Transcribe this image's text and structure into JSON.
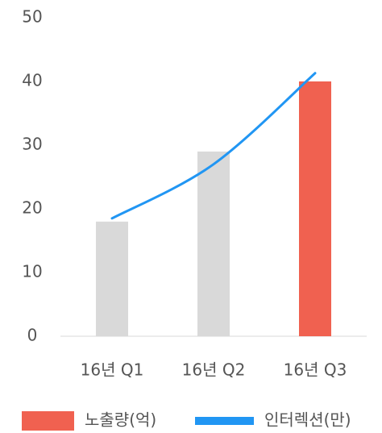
{
  "chart_data": {
    "type": "bar",
    "categories": [
      "16년 Q1",
      "16년 Q2",
      "16년 Q3"
    ],
    "series": [
      {
        "name": "노출량(억)",
        "type": "bar",
        "color": "#f06150",
        "colors": [
          "#d9d9d9",
          "#d9d9d9",
          "#f06150"
        ],
        "values": [
          18,
          29,
          40
        ]
      },
      {
        "name": "인터렉션(만)",
        "type": "line",
        "color": "#2196f3",
        "values": [
          18.5,
          27,
          41.3
        ]
      }
    ],
    "ylim": [
      0,
      50
    ],
    "yticks": [
      0,
      10,
      20,
      30,
      40,
      50
    ],
    "grid": false
  }
}
